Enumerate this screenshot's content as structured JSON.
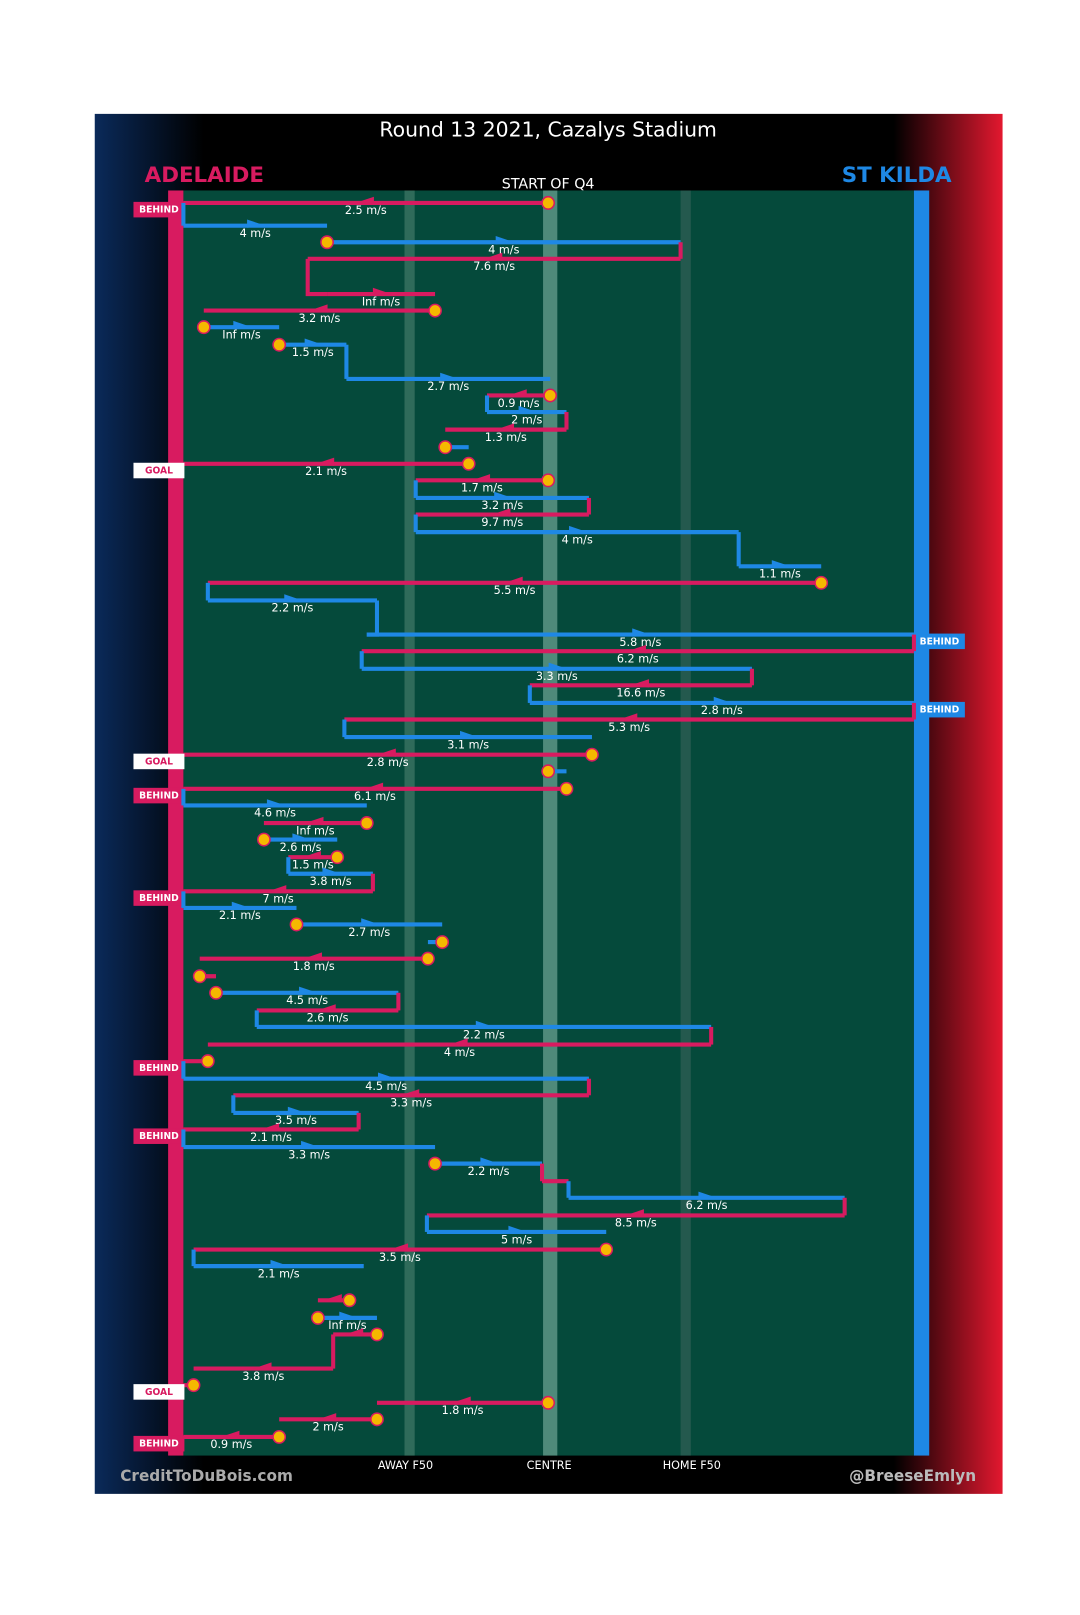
{
  "title": "Round 13 2021, Cazalys Stadium",
  "home_team": "ADELAIDE",
  "away_team": "ST KILDA",
  "subtitle": "START OF Q4",
  "field_labels": [
    "AWAY F50",
    "CENTRE",
    "HOME F50"
  ],
  "credit_left": "CreditToDuBois.com",
  "credit_right": "@BreeseEmlyn",
  "speeds": [
    "2.5 m/s",
    "4 m/s",
    "4 m/s",
    "7.6 m/s",
    "Inf m/s",
    "3.2 m/s",
    "Inf m/s",
    "1.5 m/s",
    "2.7 m/s",
    "0.9 m/s",
    "2 m/s",
    "1.3 m/s",
    "2.1 m/s",
    "1.7 m/s",
    "3.2 m/s",
    "9.7 m/s",
    "4 m/s",
    "1.1 m/s",
    "5.5 m/s",
    "2.2 m/s",
    "5.8 m/s",
    "6.2 m/s",
    "3.3 m/s",
    "16.6 m/s",
    "2.8 m/s",
    "5.3 m/s",
    "3.1 m/s",
    "2.8 m/s",
    "6.1 m/s",
    "4.6 m/s",
    "Inf m/s",
    "2.6 m/s",
    "1.5 m/s",
    "3.8 m/s",
    "7 m/s",
    "2.1 m/s",
    "2.7 m/s",
    "1.8 m/s",
    "4.5 m/s",
    "2.6 m/s",
    "2.2 m/s",
    "4 m/s",
    "4.5 m/s",
    "3.3 m/s",
    "3.5 m/s",
    "2.1 m/s",
    "3.3 m/s",
    "2.2 m/s",
    "6.2 m/s",
    "8.5 m/s",
    "5 m/s",
    "3.5 m/s",
    "2.1 m/s",
    "Inf m/s",
    "3.8 m/s",
    "1.8 m/s",
    "2 m/s",
    "0.9 m/s"
  ],
  "outcomes": [
    "BEHIND",
    "GOAL",
    "BEHIND",
    "BEHIND",
    "GOAL",
    "BEHIND",
    "BEHIND",
    "BEHIND",
    "BEHIND",
    "GOAL",
    "BEHIND"
  ]
}
